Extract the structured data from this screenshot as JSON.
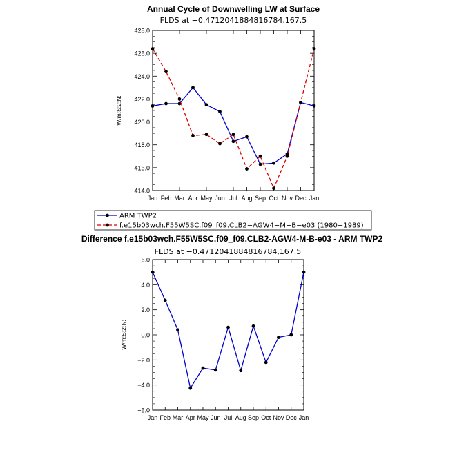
{
  "colors": {
    "obs": "#0000cc",
    "model": "#dd0000",
    "diff": "#0000cc",
    "marker": "#000000"
  },
  "chart_data": [
    {
      "id": "top",
      "type": "line",
      "title": "Annual Cycle of Downwelling LW at Surface",
      "subtitle": "FLDS at −0.4712041884816784,167.5",
      "ylabel": "W/m:S:2:N:",
      "categories": [
        "Jan",
        "Feb",
        "Mar",
        "Apr",
        "May",
        "Jun",
        "Jul",
        "Aug",
        "Sep",
        "Oct",
        "Nov",
        "Dec",
        "Jan"
      ],
      "ylim": [
        414.0,
        428.0
      ],
      "yticks": [
        "414.0",
        "416.0",
        "418.0",
        "420.0",
        "422.0",
        "424.0",
        "426.0",
        "428.0"
      ],
      "series": [
        {
          "name": "ARM TWP2",
          "style": "solid",
          "values": [
            421.4,
            421.6,
            421.6,
            423.0,
            421.5,
            420.9,
            418.3,
            418.7,
            416.3,
            416.4,
            417.2,
            421.7,
            421.4
          ]
        },
        {
          "name": "f.e15b03wch.F55W5SC.f09_f09.CLB2−AGW4−M−B−e03 (1980−1989)",
          "style": "dashed",
          "values": [
            426.4,
            424.4,
            422.0,
            418.8,
            418.9,
            418.1,
            418.9,
            415.9,
            417.0,
            414.2,
            417.0,
            421.7,
            426.4
          ]
        }
      ]
    },
    {
      "id": "bottom",
      "type": "line",
      "title": "Difference f.e15b03wch.F55W5SC.f09_f09.CLB2-AGW4-M-B-e03 - ARM TWP2",
      "subtitle": "FLDS at −0.4712041884816784,167.5",
      "ylabel": "W/m:S:2:N:",
      "categories": [
        "Jan",
        "Feb",
        "Mar",
        "Apr",
        "May",
        "Jun",
        "Jul",
        "Aug",
        "Sep",
        "Oct",
        "Nov",
        "Dec",
        "Jan"
      ],
      "ylim": [
        -6.0,
        6.0
      ],
      "yticks": [
        "−6.0",
        "−4.0",
        "−2.0",
        "0.0",
        "2.0",
        "4.0",
        "6.0"
      ],
      "series": [
        {
          "name": "Difference",
          "style": "solid",
          "values": [
            5.0,
            2.75,
            0.4,
            -4.25,
            -2.65,
            -2.8,
            0.6,
            -2.85,
            0.7,
            -2.2,
            -0.2,
            0.0,
            5.0
          ]
        }
      ]
    }
  ]
}
